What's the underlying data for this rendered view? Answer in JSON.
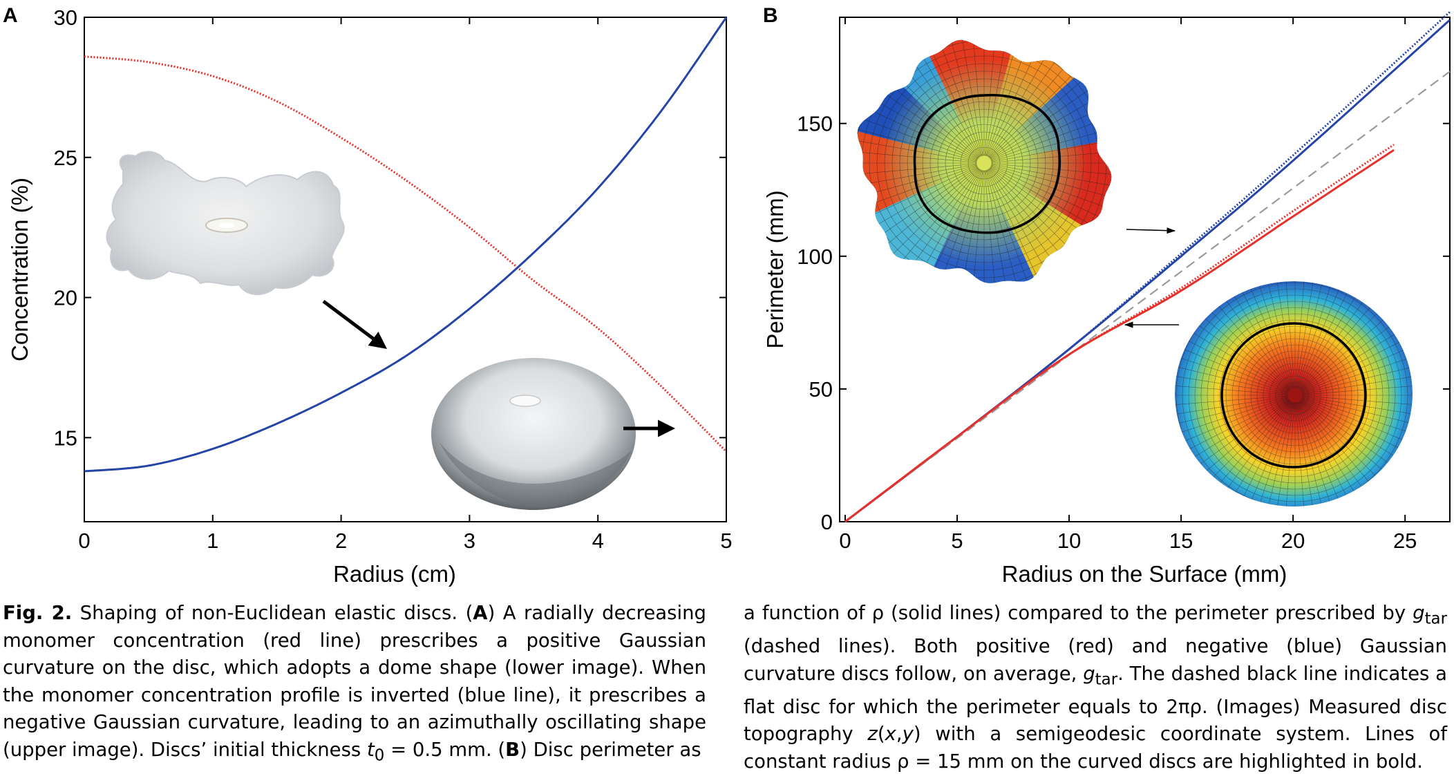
{
  "panels": {
    "a": {
      "letter": "A"
    },
    "b": {
      "letter": "B"
    }
  },
  "insets": {
    "a_upper": "photo of disc with azimuthally oscillating saddle shape",
    "a_lower": "photo of dome-shaped disc",
    "b_upper": "color topography map of negative curvature disc",
    "b_lower": "color topography map of positive curvature disc"
  },
  "colors": {
    "red": "#e8302a",
    "blue": "#2444a8",
    "dashed": "#9a9a9a"
  },
  "chart_data": [
    {
      "id": "A",
      "type": "line",
      "xlabel": "Radius (cm)",
      "ylabel": "Concentration (%)",
      "xlim": [
        0,
        5
      ],
      "ylim": [
        12,
        30
      ],
      "xticks": [
        0,
        1,
        2,
        3,
        4,
        5
      ],
      "yticks": [
        15,
        20,
        25,
        30
      ],
      "grid": false,
      "series": [
        {
          "color": "red",
          "style": "dotted",
          "x": [
            0,
            0.5,
            1,
            1.5,
            2,
            2.5,
            3,
            3.5,
            4,
            4.5,
            5
          ],
          "y": [
            28.6,
            28.4,
            27.9,
            27.0,
            25.7,
            24.2,
            22.5,
            20.6,
            18.9,
            16.8,
            14.5
          ]
        },
        {
          "color": "blue",
          "style": "solid",
          "x": [
            0,
            0.5,
            1,
            1.5,
            2,
            2.5,
            3,
            3.5,
            4,
            4.5,
            5
          ],
          "y": [
            13.8,
            14.0,
            14.6,
            15.5,
            16.6,
            17.9,
            19.6,
            21.6,
            23.9,
            26.7,
            30.0
          ]
        }
      ]
    },
    {
      "id": "B",
      "type": "line",
      "xlabel": "Radius on the Surface (mm)",
      "ylabel": "Perimeter (mm)",
      "xlim": [
        0,
        27
      ],
      "ylim": [
        0,
        190
      ],
      "xticks": [
        0,
        5,
        10,
        15,
        20,
        25
      ],
      "yticks": [
        0,
        50,
        100,
        150
      ],
      "grid": false,
      "series": [
        {
          "color": "blue",
          "style": "solid",
          "x": [
            0,
            5,
            10,
            15,
            20,
            27
          ],
          "y": [
            0,
            32,
            65,
            100,
            136,
            189
          ]
        },
        {
          "color": "blue",
          "style": "dotted",
          "x": [
            0,
            5,
            10,
            15,
            20,
            27
          ],
          "y": [
            0,
            32,
            65,
            101,
            138,
            192
          ]
        },
        {
          "color": "dashed",
          "style": "dashed",
          "x": [
            0,
            27
          ],
          "y": [
            0,
            169.6
          ]
        },
        {
          "color": "red",
          "style": "solid",
          "x": [
            0,
            5,
            10,
            15,
            20,
            24.5
          ],
          "y": [
            0,
            32,
            63,
            87,
            115,
            140
          ]
        },
        {
          "color": "red",
          "style": "dotted",
          "x": [
            0,
            5,
            10,
            15,
            20,
            24.5
          ],
          "y": [
            0,
            32,
            63,
            88,
            117,
            142
          ]
        }
      ]
    }
  ],
  "caption": {
    "fig_label": "Fig. 2.",
    "left_lines": [
      " Shaping of non-Euclidean elastic discs. (",
      "A",
      ") A radially decreasing monomer concentration (red line) prescribes a positive Gaussian curvature on the disc, which adopts a dome shape (lower image). When the monomer concentration profile is inverted (blue line), it prescribes a negative Gaussian curvature, leading to an azimuthally oscillating shape (upper image). Discs’ initial thickness ",
      "t",
      "0",
      " = 0.5 mm. (",
      "B",
      ") Disc perimeter as"
    ],
    "right_parts": [
      "a function of ρ (solid lines) compared to the perimeter prescribed by ",
      "g",
      "tar",
      " (dashed lines). Both positive (red) and negative (blue) Gaussian curvature discs follow, on average, ",
      "g",
      "tar",
      ". The dashed black line indicates a flat disc for which the perimeter equals to 2πρ. (Images) Measured disc topography ",
      "z",
      "(",
      "x",
      ",",
      "y",
      ")",
      " with a semigeodesic coordinate system. Lines of constant radius ρ = 15 mm on the curved discs are highlighted in bold."
    ]
  }
}
